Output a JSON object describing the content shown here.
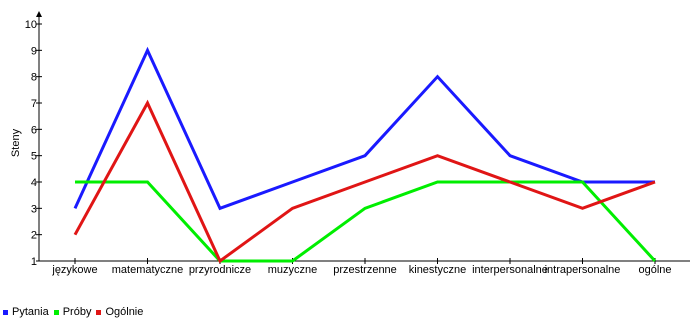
{
  "chart_data": {
    "type": "line",
    "title": "",
    "xlabel": "",
    "ylabel": "Steny",
    "ylim": [
      1,
      10
    ],
    "yticks": [
      "1",
      "2",
      "3",
      "4",
      "5",
      "6",
      "7",
      "8",
      "9",
      "10"
    ],
    "categories": [
      "językowe",
      "matematyczne",
      "przyrodnicze",
      "muzyczne",
      "przestrzenne",
      "kinestyczne",
      "interpersonalne",
      "intrapersonalne",
      "ogólne"
    ],
    "series": [
      {
        "name": "Pytania",
        "color": "#1a1aff",
        "values": [
          3,
          9,
          3,
          4,
          5,
          8,
          5,
          4,
          4
        ]
      },
      {
        "name": "Próby",
        "color": "#00ee00",
        "values": [
          4,
          4,
          1,
          1,
          3,
          4,
          4,
          4,
          1
        ]
      },
      {
        "name": "Ogólnie",
        "color": "#e01515",
        "values": [
          2,
          7,
          1,
          3,
          4,
          5,
          4,
          3,
          4
        ]
      }
    ],
    "grid": false,
    "legend_position": "bottom-left"
  }
}
